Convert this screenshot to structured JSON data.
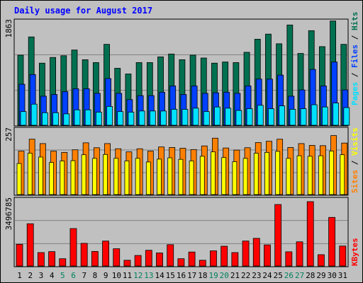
{
  "chart_data": [
    {
      "type": "bar",
      "title": "Daily usage for August 2017",
      "ylabel_parts": [
        "Pages",
        "Files",
        "Hits"
      ],
      "ymax_label": "1863",
      "ylim": [
        0,
        1863
      ],
      "categories": [
        "1",
        "2",
        "3",
        "4",
        "5",
        "6",
        "7",
        "8",
        "9",
        "10",
        "11",
        "12",
        "13",
        "14",
        "15",
        "16",
        "17",
        "18",
        "19",
        "20",
        "21",
        "22",
        "23",
        "24",
        "25",
        "26",
        "27",
        "28",
        "29",
        "30",
        "31"
      ],
      "weekend_days": [
        "5",
        "6",
        "12",
        "13",
        "19",
        "20",
        "26",
        "27"
      ],
      "series": [
        {
          "name": "Hits",
          "color": "#007050",
          "values": [
            1230,
            1550,
            1090,
            1190,
            1220,
            1320,
            1150,
            1100,
            1420,
            1000,
            900,
            1100,
            1100,
            1200,
            1250,
            1150,
            1230,
            1180,
            1090,
            1110,
            1100,
            1280,
            1510,
            1600,
            1430,
            1760,
            1260,
            1660,
            1380,
            1830,
            1420
          ]
        },
        {
          "name": "Files",
          "color": "#0040ff",
          "values": [
            720,
            890,
            510,
            540,
            590,
            640,
            640,
            560,
            820,
            560,
            450,
            520,
            520,
            580,
            690,
            540,
            690,
            560,
            570,
            580,
            560,
            690,
            810,
            810,
            880,
            510,
            620,
            980,
            690,
            1110,
            620
          ]
        },
        {
          "name": "Pages",
          "color": "#00e0ff",
          "values": [
            240,
            370,
            220,
            220,
            200,
            270,
            270,
            230,
            330,
            240,
            230,
            250,
            250,
            250,
            280,
            280,
            300,
            240,
            320,
            300,
            260,
            290,
            350,
            290,
            340,
            280,
            290,
            360,
            320,
            390,
            310
          ]
        }
      ]
    },
    {
      "type": "bar",
      "ylabel_parts": [
        "Sites",
        "Visits"
      ],
      "ymax_label": "257",
      "ylim": [
        0,
        257
      ],
      "categories": [
        "1",
        "2",
        "3",
        "4",
        "5",
        "6",
        "7",
        "8",
        "9",
        "10",
        "11",
        "12",
        "13",
        "14",
        "15",
        "16",
        "17",
        "18",
        "19",
        "20",
        "21",
        "22",
        "23",
        "24",
        "25",
        "26",
        "27",
        "28",
        "29",
        "30",
        "31"
      ],
      "series": [
        {
          "name": "Visits",
          "color": "#ff8000",
          "values": [
            168,
            214,
            197,
            168,
            163,
            173,
            200,
            181,
            197,
            177,
            165,
            177,
            168,
            184,
            182,
            179,
            174,
            188,
            218,
            180,
            172,
            181,
            201,
            206,
            214,
            182,
            197,
            190,
            189,
            228,
            199
          ]
        },
        {
          "name": "Sites",
          "color": "#ffff00",
          "values": [
            120,
            160,
            145,
            124,
            130,
            131,
            154,
            140,
            155,
            140,
            130,
            140,
            126,
            137,
            142,
            136,
            130,
            148,
            165,
            143,
            127,
            140,
            160,
            163,
            167,
            140,
            150,
            148,
            150,
            168,
            154
          ]
        }
      ]
    },
    {
      "type": "bar",
      "ylabel_parts": [
        "KBytes"
      ],
      "ymax_label": "3496785",
      "ylim": [
        0,
        3496785
      ],
      "categories": [
        "1",
        "2",
        "3",
        "4",
        "5",
        "6",
        "7",
        "8",
        "9",
        "10",
        "11",
        "12",
        "13",
        "14",
        "15",
        "16",
        "17",
        "18",
        "19",
        "20",
        "21",
        "22",
        "23",
        "24",
        "25",
        "26",
        "27",
        "28",
        "29",
        "30",
        "31"
      ],
      "series": [
        {
          "name": "KBytes",
          "color": "#ff0000",
          "values": [
            1130000,
            2200000,
            700000,
            750000,
            380000,
            1950000,
            1180000,
            760000,
            1300000,
            900000,
            300000,
            550000,
            820000,
            680000,
            1110000,
            380000,
            730000,
            300000,
            790000,
            1030000,
            700000,
            1300000,
            1440000,
            1100000,
            3200000,
            740000,
            1260000,
            3350000,
            590000,
            2530000,
            1040000
          ]
        }
      ]
    }
  ]
}
